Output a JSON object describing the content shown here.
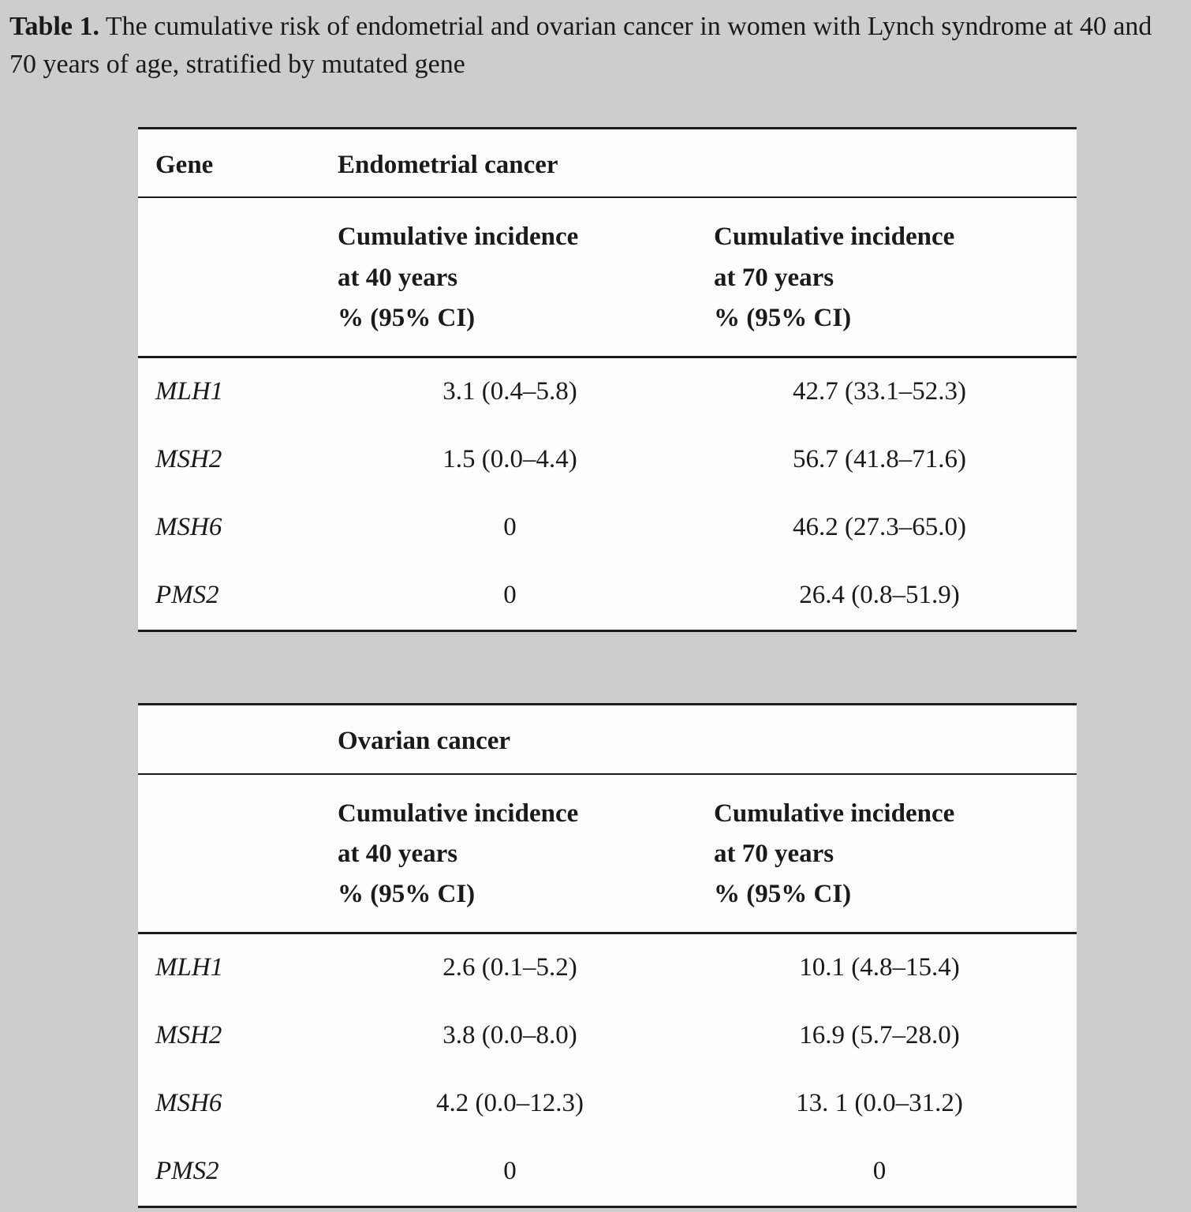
{
  "caption": {
    "label": "Table 1.",
    "text": " The cumulative risk of endometrial and ovarian cancer in women with Lynch syndrome at 40 and 70 years of age, stratified by mutated gene"
  },
  "table1": {
    "gene_col_header": "Gene",
    "title": "Endometrial cancer",
    "col40_header": "Cumulative incidence\nat 40 years\n% (95% CI)",
    "col70_header": "Cumulative incidence\nat 70 years\n% (95% CI)",
    "rows": [
      {
        "gene": "MLH1",
        "at40": "3.1 (0.4–5.8)",
        "at70": "42.7 (33.1–52.3)"
      },
      {
        "gene": "MSH2",
        "at40": "1.5 (0.0–4.4)",
        "at70": "56.7 (41.8–71.6)"
      },
      {
        "gene": "MSH6",
        "at40": "0",
        "at70": "46.2 (27.3–65.0)"
      },
      {
        "gene": "PMS2",
        "at40": "0",
        "at70": "26.4 (0.8–51.9)"
      }
    ]
  },
  "table2": {
    "gene_col_header": "",
    "title": "Ovarian cancer",
    "col40_header": "Cumulative incidence\nat 40 years\n% (95% CI)",
    "col70_header": "Cumulative incidence\nat 70 years\n% (95% CI)",
    "rows": [
      {
        "gene": "MLH1",
        "at40": "2.6 (0.1–5.2)",
        "at70": "10.1 (4.8–15.4)"
      },
      {
        "gene": "MSH2",
        "at40": "3.8 (0.0–8.0)",
        "at70": "16.9 (5.7–28.0)"
      },
      {
        "gene": "MSH6",
        "at40": "4.2 (0.0–12.3)",
        "at70": "13. 1 (0.0–31.2)"
      },
      {
        "gene": "PMS2",
        "at40": "0",
        "at70": "0"
      }
    ]
  },
  "colors": {
    "page_background": "#cdcdcd",
    "table_background": "#fdfdfd",
    "text": "#1a1a1a",
    "rule": "#1a1a1a"
  }
}
